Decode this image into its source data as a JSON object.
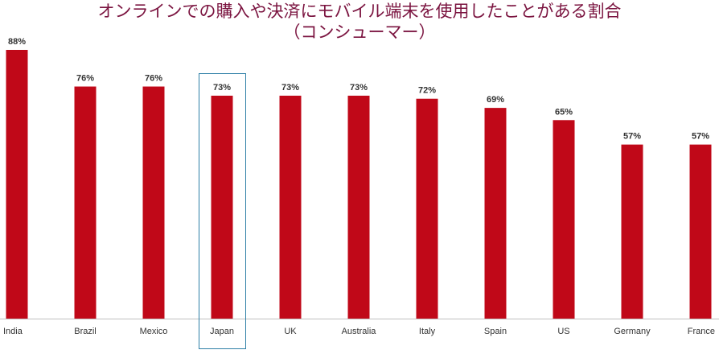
{
  "chart_data": {
    "type": "bar",
    "title": "オンラインでの購入や決済にモバイル端末を使用したことがある割合",
    "subtitle": "（コンシューマー）",
    "categories": [
      "India",
      "Brazil",
      "Mexico",
      "Japan",
      "UK",
      "Australia",
      "Italy",
      "Spain",
      "US",
      "Germany",
      "France"
    ],
    "values": [
      88,
      76,
      76,
      73,
      73,
      73,
      72,
      69,
      65,
      57,
      57
    ],
    "data_labels": [
      "88%",
      "76%",
      "76%",
      "73%",
      "73%",
      "73%",
      "72%",
      "69%",
      "65%",
      "57%",
      "57%"
    ],
    "ylim": [
      0,
      100
    ],
    "grid": false,
    "highlight_category": "Japan",
    "colors": {
      "bar": "#c00818",
      "title": "#7b1440",
      "highlight_box": "#2e7fa6",
      "axis": "#bfbfbf"
    }
  }
}
